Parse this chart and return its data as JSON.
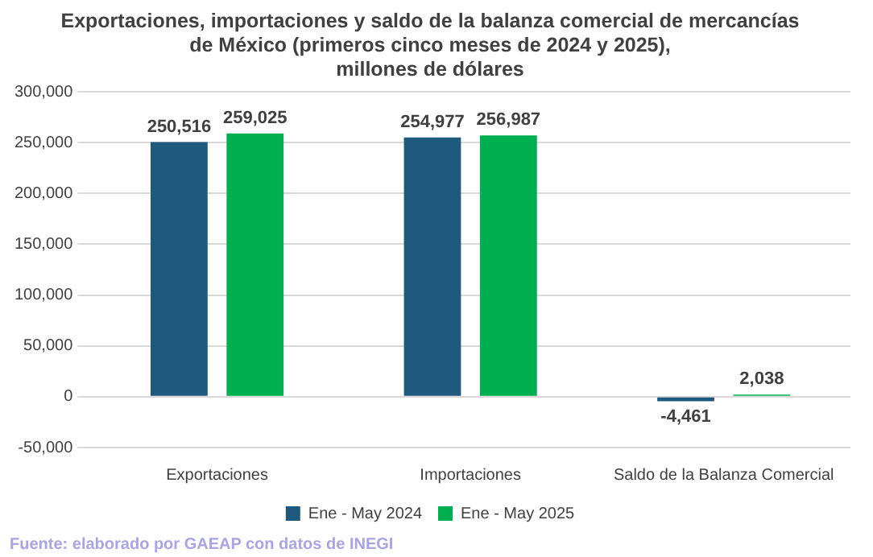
{
  "chart_data": {
    "type": "bar",
    "title": [
      "Exportaciones, importaciones y saldo de la balanza comercial de mercancías",
      "de México (primeros cinco meses de 2024 y 2025),",
      "millones de dólares"
    ],
    "categories": [
      "Exportaciones",
      "Importaciones",
      "Saldo de la Balanza Comercial"
    ],
    "series": [
      {
        "name": "Ene - May 2024",
        "color": "#1f5a7e",
        "values": [
          250516,
          254977,
          -4461
        ],
        "value_labels": [
          "250,516",
          "254,977",
          "-4,461"
        ]
      },
      {
        "name": "Ene - May 2025",
        "color": "#00b050",
        "values": [
          259025,
          256987,
          2038
        ],
        "value_labels": [
          "259,025",
          "256,987",
          "2,038"
        ]
      }
    ],
    "ylim": [
      -50000,
      300000
    ],
    "yticks": [
      {
        "value": -50000,
        "label": "-50,000"
      },
      {
        "value": 0,
        "label": "0"
      },
      {
        "value": 50000,
        "label": "50,000"
      },
      {
        "value": 100000,
        "label": "100,000"
      },
      {
        "value": 150000,
        "label": "150,000"
      },
      {
        "value": 200000,
        "label": "200,000"
      },
      {
        "value": 250000,
        "label": "250,000"
      },
      {
        "value": 300000,
        "label": "300,000"
      }
    ],
    "grid": "y",
    "legend": "bottom",
    "annotations": [
      "Fuente: elaborado por GAEAP con datos de INEGI"
    ]
  }
}
